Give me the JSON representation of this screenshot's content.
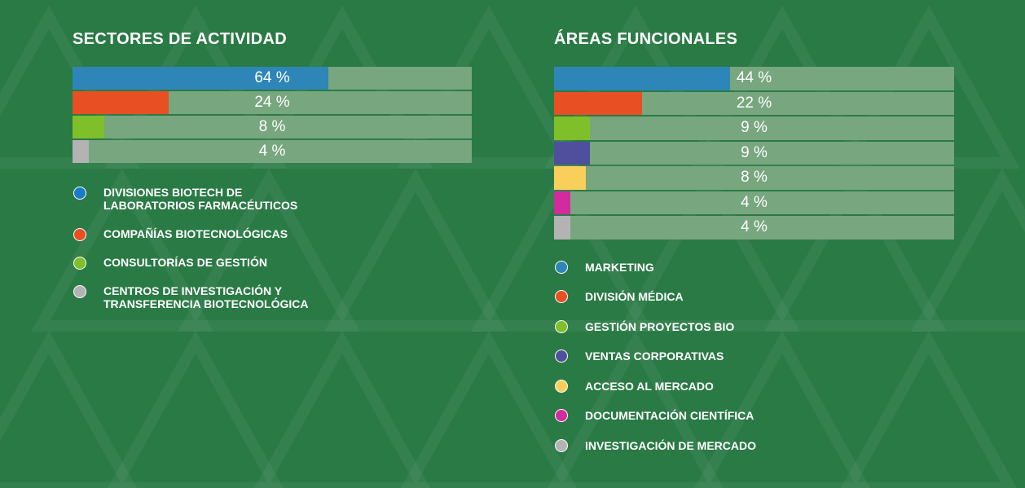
{
  "colors": {
    "background": "#2a7a45",
    "bar_track": "#77a67f",
    "blue": "#2e86b8",
    "orange": "#e84f22",
    "green": "#7fbf2a",
    "purple": "#4f4f9e",
    "yellow": "#f9cf5c",
    "magenta": "#d12b9d",
    "gray": "#b3b3b3"
  },
  "chart_data": [
    {
      "type": "bar",
      "orientation": "horizontal",
      "title": "SECTORES DE ACTIVIDAD",
      "xlim": [
        0,
        100
      ],
      "categories": [
        "DIVISIONES BIOTECH DE LABORATORIOS FARMACÉUTICOS",
        "COMPAÑÍAS BIOTECNOLÓGICAS",
        "CONSULTORÍAS DE GESTIÓN",
        "CENTROS DE INVESTIGACIÓN Y TRANSFERENCIA BIOTECNOLÓGICA"
      ],
      "values": [
        64,
        24,
        8,
        4
      ],
      "labels": [
        "64 %",
        "24 %",
        "8 %",
        "4 %"
      ],
      "colors": [
        "#2e86b8",
        "#e84f22",
        "#7fbf2a",
        "#b3b3b3"
      ],
      "legend": [
        {
          "line1": "DIVISIONES BIOTECH DE",
          "line2": "LABORATORIOS FARMACÉUTICOS",
          "color": "#1a7cc7"
        },
        {
          "line1": "COMPAÑÍAS BIOTECNOLÓGICAS",
          "line2": "",
          "color": "#e84f22"
        },
        {
          "line1": "CONSULTORÍAS DE GESTIÓN",
          "line2": "",
          "color": "#7fbf2a"
        },
        {
          "line1": "CENTROS DE INVESTIGACIÓN Y",
          "line2": "TRANSFERENCIA BIOTECNOLÓGICA",
          "color": "#b3b3b3"
        }
      ]
    },
    {
      "type": "bar",
      "orientation": "horizontal",
      "title": "ÁREAS FUNCIONALES",
      "xlim": [
        0,
        100
      ],
      "categories": [
        "MARKETING",
        "DIVISIÓN MÉDICA",
        "GESTIÓN PROYECTOS BIO",
        "VENTAS CORPORATIVAS",
        "ACCESO AL MERCADO",
        "DOCUMENTACIÓN CIENTÍFICA",
        "INVESTIGACIÓN DE MERCADO"
      ],
      "values": [
        44,
        22,
        9,
        9,
        8,
        4,
        4
      ],
      "labels": [
        "44 %",
        "22 %",
        "9 %",
        "9 %",
        "8 %",
        "4 %",
        "4 %"
      ],
      "colors": [
        "#2e86b8",
        "#e84f22",
        "#7fbf2a",
        "#4f4f9e",
        "#f9cf5c",
        "#d12b9d",
        "#b3b3b3"
      ],
      "legend": [
        {
          "line1": "MARKETING",
          "color": "#2e86b8"
        },
        {
          "line1": "DIVISIÓN MÉDICA",
          "color": "#e84f22"
        },
        {
          "line1": "GESTIÓN PROYECTOS BIO",
          "color": "#7fbf2a"
        },
        {
          "line1": "VENTAS CORPORATIVAS",
          "color": "#4f4f9e"
        },
        {
          "line1": "ACCESO AL MERCADO",
          "color": "#f9cf5c"
        },
        {
          "line1": "DOCUMENTACIÓN CIENTÍFICA",
          "color": "#d12b9d"
        },
        {
          "line1": "INVESTIGACIÓN DE MERCADO",
          "color": "#b3b3b3"
        }
      ]
    }
  ]
}
